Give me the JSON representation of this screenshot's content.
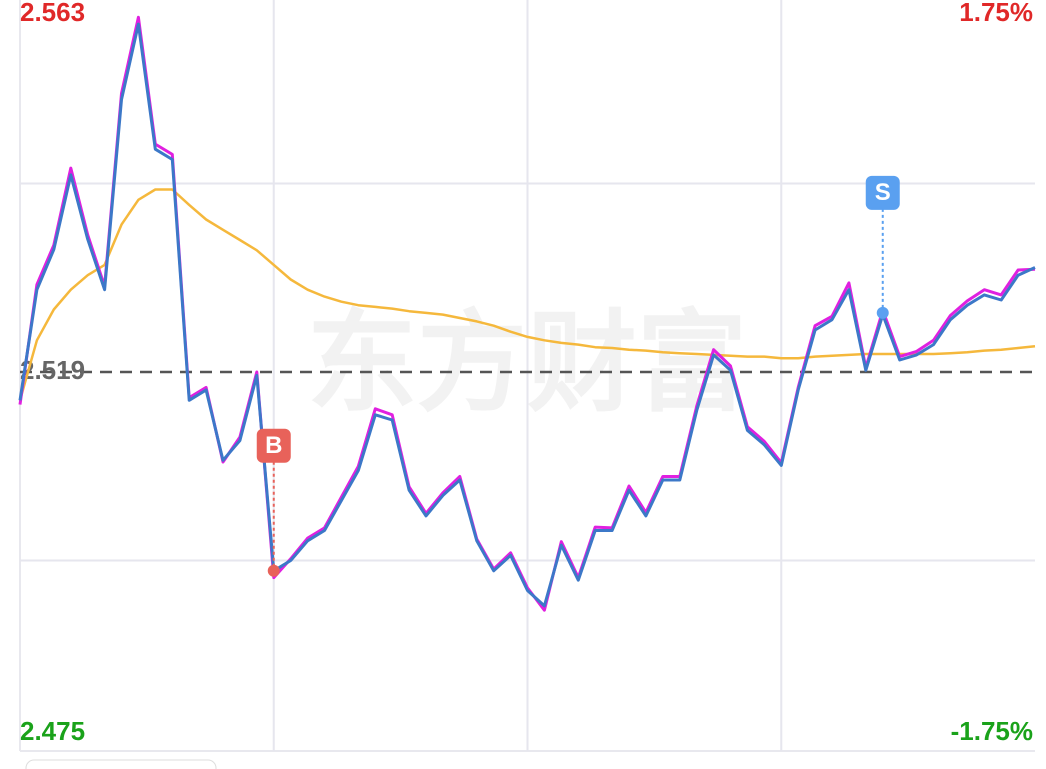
{
  "chart_data": {
    "type": "line",
    "watermark": "东方财富",
    "xlim": [
      0,
      240
    ],
    "x_grid": [
      60,
      120,
      180
    ],
    "ylim": [
      2.475,
      2.563
    ],
    "yticks": [
      {
        "value": 2.475,
        "label": "2.475",
        "color": "#1aa21a"
      },
      {
        "value": 2.519,
        "label": "2.519",
        "color": "#666666"
      },
      {
        "value": 2.563,
        "label": "2.563",
        "color": "#e02828"
      }
    ],
    "grid_yticks": [
      2.497,
      2.541
    ],
    "y2lim": [
      -1.75,
      1.75
    ],
    "y2ticks": [
      {
        "value": -1.75,
        "label": "-1.75%",
        "color": "#1aa21a"
      },
      {
        "value": 1.75,
        "label": "1.75%",
        "color": "#e02828"
      }
    ],
    "x": [
      0,
      4,
      8,
      12,
      16,
      20,
      24,
      28,
      32,
      36,
      40,
      44,
      48,
      52,
      56,
      60,
      64,
      68,
      72,
      76,
      80,
      84,
      88,
      92,
      96,
      100,
      104,
      108,
      112,
      116,
      120,
      124,
      128,
      132,
      136,
      140,
      144,
      148,
      152,
      156,
      160,
      164,
      168,
      172,
      176,
      180,
      184,
      188,
      192,
      196,
      200,
      204,
      208,
      212,
      216,
      220,
      224,
      228,
      232,
      236,
      240
    ],
    "series": [
      {
        "color": "#e020e0",
        "values": [
          2.5152,
          2.5292,
          2.5338,
          2.5428,
          2.535,
          2.529,
          2.5515,
          2.5604,
          2.5456,
          2.5444,
          2.516,
          2.5172,
          2.5085,
          2.5114,
          2.519,
          2.495,
          2.4972,
          2.4996,
          2.5008,
          2.5044,
          2.508,
          2.5147,
          2.514,
          2.5056,
          2.5025,
          2.5049,
          2.5068,
          2.4995,
          2.496,
          2.4979,
          2.4938,
          2.4912,
          2.4992,
          2.495,
          2.5009,
          2.5008,
          2.5057,
          2.5026,
          2.5068,
          2.5068,
          2.515,
          2.5216,
          2.5197,
          2.5126,
          2.5109,
          2.5084,
          2.5172,
          2.5244,
          2.5255,
          2.5294,
          2.5195,
          2.5262,
          2.5208,
          2.5214,
          2.5227,
          2.5256,
          2.5273,
          2.5286,
          2.528,
          2.5309,
          2.531
        ]
      },
      {
        "color": "#3c78c8",
        "values": [
          2.5157,
          2.5286,
          2.5333,
          2.542,
          2.5345,
          2.5286,
          2.5508,
          2.5596,
          2.545,
          2.5438,
          2.5157,
          2.5169,
          2.5087,
          2.511,
          2.5186,
          2.4958,
          2.497,
          2.4993,
          2.5005,
          2.504,
          2.5075,
          2.514,
          2.5134,
          2.5052,
          2.5022,
          2.5046,
          2.5064,
          2.4993,
          2.4958,
          2.4976,
          2.4935,
          2.4917,
          2.4988,
          2.4947,
          2.5005,
          2.5005,
          2.5052,
          2.5022,
          2.5064,
          2.5064,
          2.5145,
          2.521,
          2.5192,
          2.5122,
          2.5105,
          2.5081,
          2.5169,
          2.5239,
          2.5251,
          2.5286,
          2.5192,
          2.5257,
          2.5204,
          2.521,
          2.5222,
          2.5251,
          2.5268,
          2.528,
          2.5274,
          2.5303,
          2.5312
        ]
      },
      {
        "color": "#f5b83c",
        "values": [
          2.5157,
          2.5227,
          2.5263,
          2.5286,
          2.5303,
          2.5315,
          2.5362,
          2.5391,
          2.5403,
          2.5403,
          2.5385,
          2.5368,
          2.5356,
          2.5344,
          2.5332,
          2.5315,
          2.5298,
          2.5286,
          2.5278,
          2.5272,
          2.5268,
          2.5266,
          2.5264,
          2.5261,
          2.5259,
          2.5257,
          2.5253,
          2.5249,
          2.5244,
          2.5237,
          2.5231,
          2.5227,
          2.5224,
          2.5222,
          2.5219,
          2.5218,
          2.5216,
          2.5215,
          2.5213,
          2.5212,
          2.5211,
          2.521,
          2.5209,
          2.5208,
          2.5208,
          2.5206,
          2.5206,
          2.5208,
          2.5209,
          2.521,
          2.5211,
          2.5211,
          2.5211,
          2.5211,
          2.5211,
          2.5212,
          2.5213,
          2.5215,
          2.5216,
          2.5218,
          2.522
        ]
      }
    ],
    "markers": [
      {
        "label": "B",
        "x": 60,
        "value": 2.4958,
        "color": "#e8625a"
      },
      {
        "label": "S",
        "x": 204,
        "value": 2.5259,
        "color": "#5aa0f0"
      }
    ]
  }
}
